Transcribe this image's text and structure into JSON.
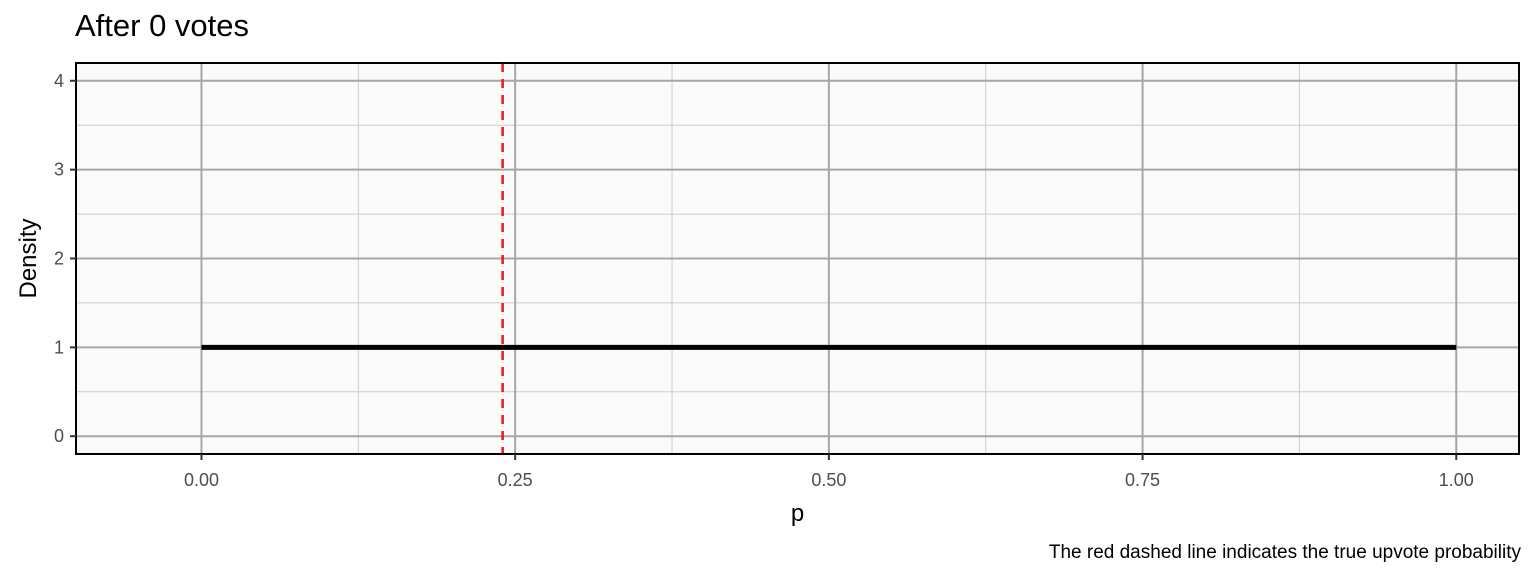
{
  "chart_data": {
    "type": "line",
    "title": "After 0 votes",
    "xlabel": "p",
    "ylabel": "Density",
    "caption": "The red dashed line indicates the true upvote probability",
    "xlim": [
      -0.1,
      1.05
    ],
    "ylim": [
      -0.2,
      4.2
    ],
    "x_ticks": [
      0,
      0.25,
      0.5,
      0.75,
      1
    ],
    "x_tick_labels": [
      "0.00",
      "0.25",
      "0.50",
      "0.75",
      "1.00"
    ],
    "y_ticks": [
      0,
      1,
      2,
      3,
      4
    ],
    "y_tick_labels": [
      "0",
      "1",
      "2",
      "3",
      "4"
    ],
    "grid": true,
    "series": [
      {
        "x": [
          0,
          1
        ],
        "values": [
          1,
          1
        ],
        "color": "#000000"
      }
    ],
    "reference_line": {
      "x": 0.24,
      "color": "#e41a1c",
      "style": "dashed"
    },
    "colors": {
      "panel_bg": "#fafafa",
      "grid_major": "#a6a6a6",
      "grid_minor": "#cccccc",
      "border": "#000000"
    }
  }
}
